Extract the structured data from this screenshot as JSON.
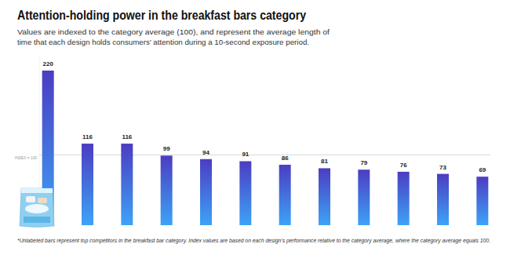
{
  "chart_data": {
    "type": "bar",
    "title": "Attention-holding power in the breakfast bars category",
    "subtitle": [
      "Values are indexed to the category average (100), and represent the average length of",
      "time that each design holds consumers’ attention during a 10-second exposure period."
    ],
    "annotations": [
      "*Unlabeled bars represent top competitors in the breakfast bar category. Index values are based on each design’s performance relative to the category average, where the category average equals 100."
    ],
    "categories": [
      null,
      null,
      null,
      null,
      null,
      null,
      null,
      null,
      null,
      null,
      null,
      null
    ],
    "values": [
      220,
      116,
      116,
      99,
      94,
      91,
      86,
      81,
      79,
      76,
      73,
      69
    ],
    "color": "#4b3dc2",
    "ylim": [
      0,
      240
    ],
    "yticks": [
      {
        "value": 100,
        "label": "INDEX = 100"
      }
    ],
    "grid": true,
    "data_labels": true
  }
}
